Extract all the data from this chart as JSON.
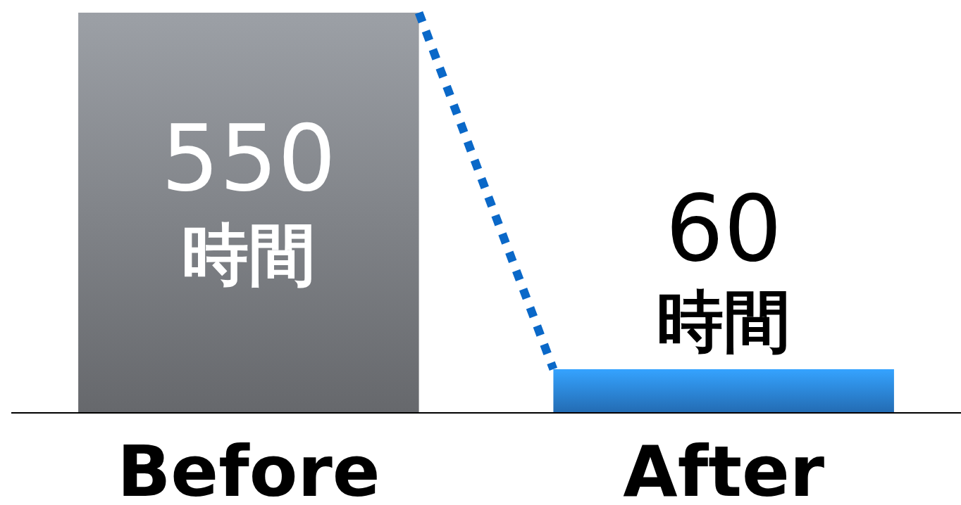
{
  "chart_data": {
    "type": "bar",
    "categories": [
      "Before",
      "After"
    ],
    "values": [
      550,
      60
    ],
    "colors": [
      "#7e8186",
      "#2b84dc"
    ],
    "ylim": [
      0,
      550
    ],
    "value_labels": [
      "550\n時間",
      "60\n時間"
    ]
  }
}
